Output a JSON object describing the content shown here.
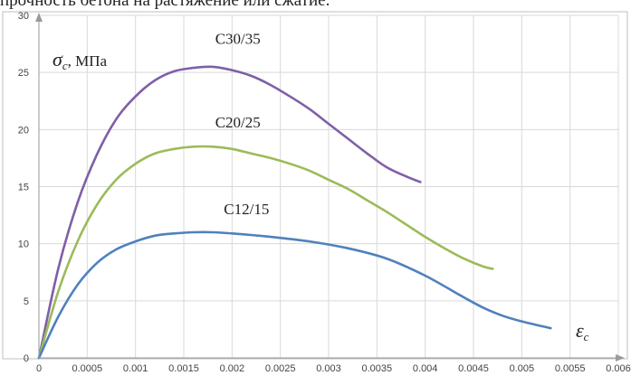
{
  "caption": "прочность бетона на растяжение или сжатие.",
  "chart_data": {
    "type": "line",
    "title": "",
    "ylabel_symbol": "σ",
    "ylabel_subscript": "c",
    "ylabel_unit": ", МПа",
    "xlabel_symbol": "ε",
    "xlabel_subscript": "c",
    "xlim": [
      0,
      0.006
    ],
    "ylim": [
      0,
      30
    ],
    "x_ticks": [
      "0",
      "0.0005",
      "0.001",
      "0.0015",
      "0.002",
      "0.0025",
      "0.003",
      "0.0035",
      "0.004",
      "0.0045",
      "0.005",
      "0.0055",
      "0.006"
    ],
    "y_ticks": [
      "0",
      "5",
      "10",
      "15",
      "20",
      "25",
      "30"
    ],
    "grid": true,
    "series": [
      {
        "name": "C30/35",
        "color": "#7f5fa8",
        "x": [
          0,
          0.0002,
          0.0004,
          0.0006,
          0.0008,
          0.001,
          0.0012,
          0.0014,
          0.0016,
          0.0018,
          0.002,
          0.0022,
          0.0024,
          0.0026,
          0.0028,
          0.003,
          0.0032,
          0.0034,
          0.0036,
          0.0038,
          0.00395
        ],
        "values": [
          0,
          7.8,
          13.6,
          17.8,
          20.9,
          22.9,
          24.3,
          25.1,
          25.4,
          25.5,
          25.2,
          24.7,
          23.9,
          22.9,
          21.8,
          20.5,
          19.2,
          17.9,
          16.7,
          15.9,
          15.4
        ]
      },
      {
        "name": "C20/25",
        "color": "#9bbb59",
        "x": [
          0,
          0.0002,
          0.0004,
          0.0006,
          0.0008,
          0.001,
          0.0012,
          0.0014,
          0.0016,
          0.0018,
          0.002,
          0.0022,
          0.0024,
          0.0026,
          0.0028,
          0.003,
          0.0032,
          0.0034,
          0.0036,
          0.0038,
          0.004,
          0.0042,
          0.0044,
          0.0046,
          0.0047
        ],
        "values": [
          0,
          5.8,
          10.2,
          13.4,
          15.6,
          17.0,
          17.9,
          18.3,
          18.5,
          18.5,
          18.3,
          17.9,
          17.5,
          17.0,
          16.4,
          15.6,
          14.8,
          13.8,
          12.8,
          11.7,
          10.6,
          9.6,
          8.7,
          8.0,
          7.8
        ]
      },
      {
        "name": "C12/15",
        "color": "#4f81bd",
        "x": [
          0,
          0.0002,
          0.0004,
          0.0006,
          0.0008,
          0.001,
          0.0012,
          0.0014,
          0.0016,
          0.0018,
          0.002,
          0.0024,
          0.0028,
          0.0032,
          0.0036,
          0.004,
          0.0044,
          0.0046,
          0.0048,
          0.005,
          0.0053
        ],
        "values": [
          0,
          3.6,
          6.4,
          8.3,
          9.5,
          10.2,
          10.7,
          10.9,
          11.0,
          11.0,
          10.9,
          10.6,
          10.2,
          9.6,
          8.7,
          7.2,
          5.3,
          4.4,
          3.7,
          3.2,
          2.6
        ]
      }
    ],
    "series_labels": [
      {
        "text": "C30/35",
        "x": 0.00206,
        "y": 27.5
      },
      {
        "text": "C20/25",
        "x": 0.00206,
        "y": 20.2
      },
      {
        "text": "C12/15",
        "x": 0.00215,
        "y": 12.6
      }
    ]
  }
}
